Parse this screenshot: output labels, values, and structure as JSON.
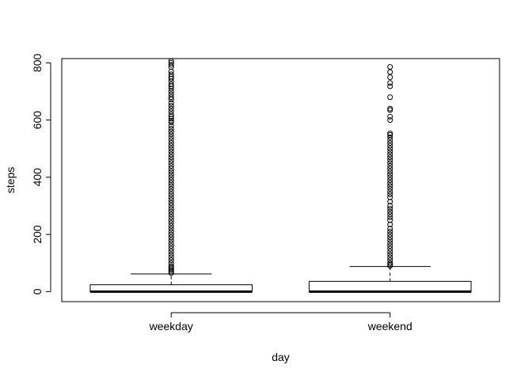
{
  "chart_data": {
    "type": "boxplot",
    "title": "",
    "xlabel": "day",
    "ylabel": "steps",
    "ylim": [
      -35,
      815
    ],
    "y_ticks": [
      0,
      200,
      400,
      600,
      800
    ],
    "categories": [
      "weekday",
      "weekend"
    ],
    "boxes": [
      {
        "name": "weekday",
        "min": 0,
        "q1": 0,
        "median": 0,
        "q3": 24,
        "whisker_high": 62,
        "outliers": [
          65,
          70,
          75,
          80,
          85,
          90,
          100,
          110,
          120,
          130,
          140,
          150,
          160,
          170,
          180,
          190,
          200,
          210,
          220,
          230,
          240,
          250,
          260,
          270,
          280,
          290,
          300,
          310,
          320,
          330,
          340,
          350,
          360,
          370,
          380,
          390,
          400,
          410,
          420,
          430,
          440,
          450,
          460,
          470,
          480,
          490,
          500,
          510,
          520,
          530,
          540,
          550,
          560,
          570,
          580,
          592,
          598,
          605,
          612,
          620,
          630,
          640,
          650,
          660,
          672,
          680,
          690,
          700,
          710,
          718,
          725,
          735,
          745,
          752,
          760,
          770,
          785,
          793,
          800,
          806
        ]
      },
      {
        "name": "weekend",
        "min": 0,
        "q1": 0,
        "median": 0,
        "q3": 36,
        "whisker_high": 88,
        "outliers": [
          90,
          95,
          100,
          110,
          120,
          130,
          140,
          150,
          160,
          170,
          180,
          190,
          200,
          210,
          220,
          235,
          250,
          260,
          270,
          280,
          290,
          300,
          315,
          330,
          340,
          350,
          360,
          370,
          380,
          390,
          400,
          410,
          420,
          430,
          440,
          450,
          460,
          470,
          480,
          490,
          500,
          510,
          520,
          530,
          540,
          548,
          553,
          600,
          612,
          635,
          640,
          680,
          718,
          730,
          750,
          768,
          786
        ]
      }
    ],
    "grid": false,
    "legend": "none"
  }
}
